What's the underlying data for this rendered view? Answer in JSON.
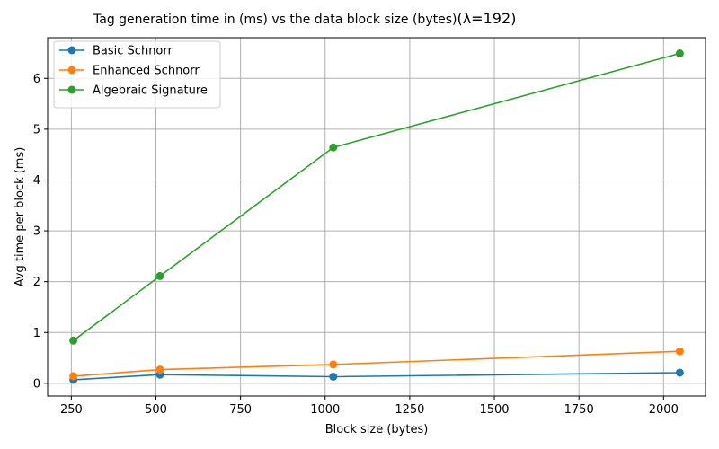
{
  "chart_data": {
    "type": "line",
    "title": "Tag generation time in (ms) vs the data block size (bytes)",
    "title_suffix": "(λ=192)",
    "xlabel": "Block size (bytes)",
    "ylabel": "Avg time per block (ms)",
    "x": [
      256,
      512,
      1024,
      2048
    ],
    "xlim": [
      180,
      2124
    ],
    "ylim": [
      -0.25,
      6.8
    ],
    "xticks": [
      250,
      500,
      750,
      1000,
      1250,
      1500,
      1750,
      2000
    ],
    "yticks": [
      0,
      1,
      2,
      3,
      4,
      5,
      6
    ],
    "grid": true,
    "legend_position": "top-left",
    "series": [
      {
        "name": "Basic Schnorr",
        "color": "#1f77b4",
        "values": [
          0.07,
          0.17,
          0.13,
          0.21
        ]
      },
      {
        "name": "Enhanced Schnorr",
        "color": "#ff7f0e",
        "values": [
          0.14,
          0.27,
          0.37,
          0.63
        ]
      },
      {
        "name": "Algebraic Signature",
        "color": "#2ca02c",
        "values": [
          0.84,
          2.11,
          4.64,
          6.49
        ]
      }
    ]
  }
}
